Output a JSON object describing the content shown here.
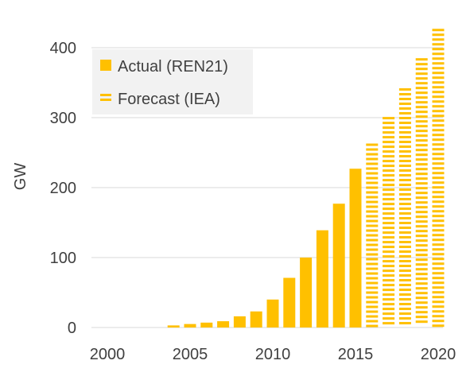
{
  "chart_data": {
    "type": "bar",
    "title": "",
    "xlabel": "",
    "ylabel": "GW",
    "ylim": [
      0,
      430
    ],
    "xlim": [
      2000,
      2021
    ],
    "y_ticks": [
      0,
      100,
      200,
      300,
      400
    ],
    "x_ticks": [
      2000,
      2005,
      2010,
      2015,
      2020
    ],
    "grid": "horizontal",
    "legend_position": "top-left",
    "colors": {
      "bar": "#FFC000",
      "grid": "#D9D9D9",
      "text": "#404040",
      "legend_bg": "#F2F2F2"
    },
    "series": [
      {
        "name": "Actual (REN21)",
        "style": "solid",
        "x": [
          2004,
          2005,
          2006,
          2007,
          2008,
          2009,
          2010,
          2011,
          2012,
          2013,
          2014,
          2015
        ],
        "values": [
          3,
          5,
          7,
          9,
          16,
          23,
          40,
          71,
          100,
          139,
          177,
          227
        ]
      },
      {
        "name": "Forecast (IEA)",
        "style": "dashed",
        "x": [
          2016,
          2017,
          2018,
          2019,
          2020
        ],
        "values": [
          263,
          301,
          342,
          385,
          427
        ]
      }
    ]
  }
}
